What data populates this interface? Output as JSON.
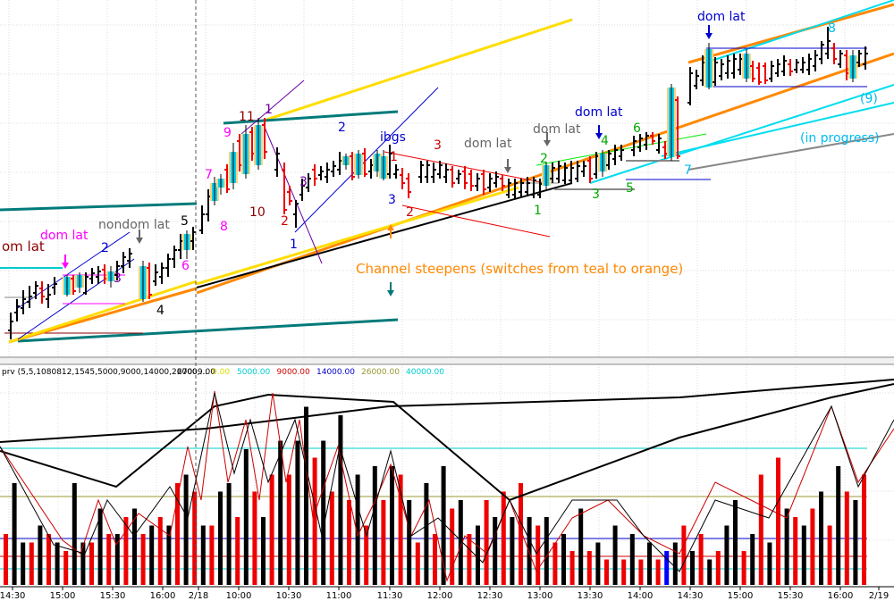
{
  "chart_data": [
    {
      "type": "candlestick",
      "title": "",
      "annotations": {
        "dom_lat_left": "dom lat",
        "om_lat": "om lat",
        "nondom_lat": "nondom lat",
        "dom_lat_1": "dom lat",
        "dom_lat_2": "dom lat",
        "dom_lat_3": "dom lat",
        "dom_lat_4": "dom lat",
        "dom_lat_5": "dom lat",
        "ibgs": "ibgs",
        "channel_note": "Channel steepens (switches from teal to orange)",
        "in_progress": "(in progress)",
        "nine_paren": "(9)"
      },
      "wave_labels": [
        {
          "t": "2",
          "c": "#0000cc"
        },
        {
          "t": "3",
          "c": "#6a00a0"
        },
        {
          "t": "4",
          "c": "#000000"
        },
        {
          "t": "5",
          "c": "#000000"
        },
        {
          "t": "6",
          "c": "#ff00ff"
        },
        {
          "t": "7",
          "c": "#ff00ff"
        },
        {
          "t": "8",
          "c": "#ff00ff"
        },
        {
          "t": "9",
          "c": "#ff00ff"
        },
        {
          "t": "11",
          "c": "#8b0000"
        },
        {
          "t": "1",
          "c": "#6a00a0"
        },
        {
          "t": "10",
          "c": "#8b0000"
        },
        {
          "t": "2",
          "c": "#cc0000"
        },
        {
          "t": "1",
          "c": "#0000cc"
        },
        {
          "t": "3",
          "c": "#6a00a0"
        },
        {
          "t": "2",
          "c": "#0000cc"
        },
        {
          "t": "1",
          "c": "#cc0000"
        },
        {
          "t": "3",
          "c": "#0000cc"
        },
        {
          "t": "3",
          "c": "#cc0000"
        },
        {
          "t": "2",
          "c": "#cc0000"
        },
        {
          "t": "2",
          "c": "#00aa00"
        },
        {
          "t": "1",
          "c": "#00aa00"
        },
        {
          "t": "3",
          "c": "#00aa00"
        },
        {
          "t": "4",
          "c": "#00aa00"
        },
        {
          "t": "5",
          "c": "#00aa00"
        },
        {
          "t": "6",
          "c": "#00aa00"
        },
        {
          "t": "7",
          "c": "#00bbee"
        },
        {
          "t": "8",
          "c": "#00bbee"
        }
      ],
      "x_tick_labels": [
        "14:30",
        "15:00",
        "15:30",
        "16:00",
        "2/18",
        "10:00",
        "10:30",
        "11:00",
        "11:30",
        "12:00",
        "12:30",
        "13:00",
        "13:30",
        "14:00",
        "14:30",
        "15:00",
        "15:30",
        "16:00",
        "2/19"
      ]
    },
    {
      "type": "bar",
      "header": {
        "name": "prv (5,5,1080812,1545,5000,9000,14000,26000,...",
        "value": "27009.00",
        "levels": [
          "0.00",
          "5000.00",
          "9000.00",
          "14000.00",
          "26000.00",
          "40000.00"
        ],
        "level_colors": [
          "#dddd00",
          "#00cccc",
          "#cc0000",
          "#0000cc",
          "#999933",
          "#00cccc"
        ]
      },
      "series": [
        {
          "values": [
            6,
            12,
            5,
            5,
            7,
            6,
            5,
            4,
            12,
            5,
            5,
            9,
            6,
            6,
            8,
            9,
            6,
            7,
            8,
            7,
            12,
            13,
            11,
            7,
            7,
            11,
            12,
            8,
            16,
            11,
            8,
            13,
            17,
            13,
            17,
            21,
            15,
            17,
            11,
            20,
            10,
            13,
            7,
            14,
            10,
            14,
            13,
            10,
            5,
            12,
            6,
            14,
            9,
            10,
            6,
            7,
            10,
            8,
            11,
            8,
            12,
            8,
            7,
            8,
            5,
            6,
            4,
            9,
            4,
            5,
            3,
            7,
            3,
            6,
            3,
            5,
            3,
            4,
            5,
            7,
            4,
            6,
            3,
            4,
            7,
            10,
            4,
            6,
            13,
            5,
            15,
            9,
            8,
            7,
            9,
            11,
            7,
            14,
            11,
            10,
            13
          ]
        },
        {
          "colors": [
            "r",
            "k",
            "k",
            "r",
            "k",
            "r",
            "k",
            "r",
            "k",
            "k",
            "r",
            "k",
            "r",
            "k",
            "r",
            "k",
            "r",
            "k",
            "r",
            "k",
            "r",
            "k",
            "r",
            "k",
            "r",
            "k",
            "k",
            "r",
            "k",
            "r",
            "k",
            "r",
            "k",
            "r",
            "k",
            "k",
            "r",
            "k",
            "r",
            "k",
            "r",
            "k",
            "r",
            "k",
            "r",
            "k",
            "r",
            "k",
            "r",
            "k",
            "r",
            "k",
            "r",
            "k",
            "r",
            "k",
            "r",
            "k",
            "r",
            "k",
            "r",
            "k",
            "r",
            "k",
            "r",
            "k",
            "r",
            "k",
            "r",
            "k",
            "r",
            "k",
            "r",
            "k",
            "r",
            "k",
            "r",
            "b",
            "k",
            "r",
            "k",
            "r",
            "k",
            "r",
            "k",
            "k",
            "r",
            "k",
            "r",
            "k",
            "r",
            "k",
            "r",
            "k",
            "r",
            "k",
            "r",
            "k",
            "r",
            "k",
            "r"
          ]
        }
      ]
    }
  ]
}
